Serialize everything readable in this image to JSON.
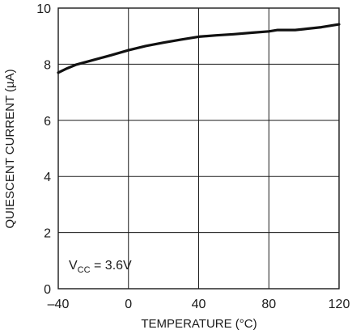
{
  "chart_data": {
    "type": "line",
    "xlabel": "TEMPERATURE (°C)",
    "ylabel": "QUIESCENT CURRENT (µA)",
    "xlim": [
      -40,
      120
    ],
    "ylim": [
      0,
      10
    ],
    "xticks": [
      -40,
      0,
      40,
      80,
      120
    ],
    "yticks": [
      0,
      2,
      4,
      6,
      8,
      10
    ],
    "xtick_labels": [
      "–40",
      "0",
      "40",
      "80",
      "120"
    ],
    "ytick_labels": [
      "0",
      "2",
      "4",
      "6",
      "8",
      "10"
    ],
    "grid": true,
    "annotation": {
      "prefix": "V",
      "subscript": "CC",
      "suffix": " = 3.6V"
    },
    "series": [
      {
        "x": [
          -40,
          -35,
          -30,
          -20,
          -10,
          0,
          10,
          20,
          30,
          40,
          50,
          60,
          70,
          80,
          85,
          95,
          100,
          110,
          120
        ],
        "y": [
          7.7,
          7.85,
          7.98,
          8.15,
          8.32,
          8.5,
          8.65,
          8.77,
          8.88,
          8.98,
          9.03,
          9.07,
          9.12,
          9.17,
          9.22,
          9.22,
          9.25,
          9.32,
          9.42
        ]
      }
    ]
  }
}
